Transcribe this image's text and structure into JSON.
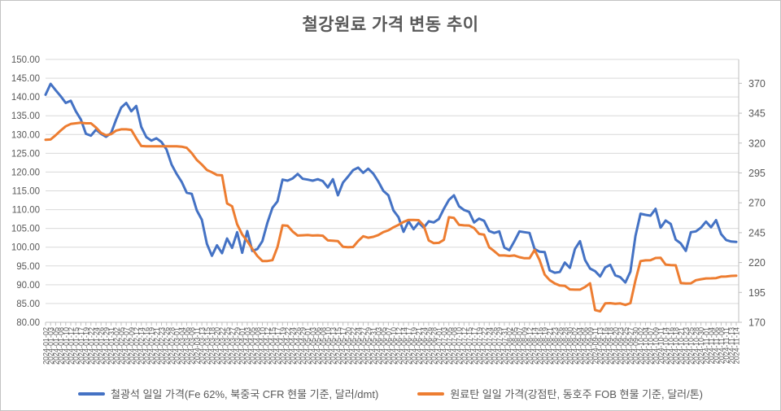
{
  "chart_data": {
    "type": "line",
    "title": "철강원료 가격 변동 추이",
    "legend_position": "bottom",
    "grid": true,
    "colors": {
      "grid": "#D9D9D9",
      "axis_line": "#BFBFBF",
      "axis_text": "#595959",
      "x_label_text": "#595959",
      "title": "#595959",
      "iron_ore": "#4472C4",
      "coking_coal": "#ED7D31",
      "background": "#FFFFFF",
      "border": "#C3C3C3"
    },
    "left_axis": {
      "min": 80,
      "max": 150,
      "step": 5,
      "tick_labels": [
        "150.00",
        "145.00",
        "140.00",
        "135.00",
        "130.00",
        "125.00",
        "120.00",
        "115.00",
        "110.00",
        "105.00",
        "100.00",
        "95.00",
        "90.00",
        "85.00",
        "80.00"
      ]
    },
    "right_axis": {
      "min": 170,
      "max": 390,
      "tick_values": [
        370,
        345,
        320,
        295,
        270,
        245,
        220,
        195,
        170
      ]
    },
    "x": [
      "2024-01-02",
      "2024-01-03",
      "2024-01-05",
      "2024-01-08",
      "2024-01-10",
      "2024-01-12",
      "2024-01-15",
      "2024-01-17",
      "2024-01-19",
      "2024-01-22",
      "2024-01-24",
      "2024-01-26",
      "2024-01-29",
      "2024-01-31",
      "2024-02-02",
      "2024-02-05",
      "2024-02-07",
      "2024-02-09",
      "2024-02-12",
      "2024-02-14",
      "2024-02-16",
      "2024-02-19",
      "2024-02-21",
      "2024-02-23",
      "2024-02-26",
      "2024-02-28",
      "2024-03-01",
      "2024-03-04",
      "2024-03-06",
      "2024-03-08",
      "2024-03-11",
      "2024-03-13",
      "2024-03-15",
      "2024-03-18",
      "2024-03-20",
      "2024-03-22",
      "2024-03-25",
      "2024-03-27",
      "2024-03-29",
      "2024-04-01",
      "2024-04-03",
      "2024-04-05",
      "2024-04-08",
      "2024-04-10",
      "2024-04-12",
      "2024-04-15",
      "2024-04-17",
      "2024-04-19",
      "2024-04-22",
      "2024-04-24",
      "2024-04-26",
      "2024-04-29",
      "2024-05-01",
      "2024-05-03",
      "2024-05-06",
      "2024-05-08",
      "2024-05-10",
      "2024-05-13",
      "2024-05-15",
      "2024-05-17",
      "2024-05-20",
      "2024-05-22",
      "2024-05-24",
      "2024-05-27",
      "2024-05-29",
      "2024-05-31",
      "2024-06-03",
      "2024-06-05",
      "2024-06-07",
      "2024-06-10",
      "2024-06-12",
      "2024-06-14",
      "2024-06-17",
      "2024-06-19",
      "2024-06-21",
      "2024-06-24",
      "2024-06-26",
      "2024-06-28",
      "2024-07-01",
      "2024-07-03",
      "2024-07-05",
      "2024-07-08",
      "2024-07-10",
      "2024-07-12",
      "2024-07-15",
      "2024-07-17",
      "2024-07-19",
      "2024-07-22",
      "2024-07-24",
      "2024-07-26",
      "2024-07-29",
      "2024-07-31",
      "2024-08-02",
      "2024-08-05",
      "2024-08-07",
      "2024-08-09",
      "2024-08-12",
      "2024-08-14",
      "2024-08-16",
      "2024-08-19",
      "2024-08-21",
      "2024-08-23",
      "2024-08-26",
      "2024-08-28",
      "2024-08-30",
      "2024-09-02",
      "2024-09-04",
      "2024-09-06",
      "2024-09-09",
      "2024-09-11",
      "2024-09-13",
      "2024-09-16",
      "2024-09-18",
      "2024-09-20",
      "2024-09-23",
      "2024-09-25",
      "2024-09-27",
      "2024-09-30",
      "2024-10-02",
      "2024-10-04",
      "2024-10-07",
      "2024-10-09",
      "2024-10-11",
      "2024-10-14",
      "2024-10-16",
      "2024-10-18",
      "2024-10-21",
      "2024-10-23",
      "2024-10-25",
      "2024-10-28",
      "2024-10-30",
      "2024-11-01",
      "2024-11-04",
      "2024-11-06",
      "2024-11-08",
      "2024-11-11",
      "2024-11-13",
      "2024-11-14"
    ],
    "series": [
      {
        "id": "iron-ore",
        "name": "철광석 일일 가격(Fe 62%, 북중국 CFR 현물 기준, 달러/dmt)",
        "axis": "left",
        "color": "#4472C4",
        "unit": "달러/dmt",
        "values": [
          140.6,
          143.5,
          141.8,
          140.2,
          138.4,
          139.0,
          136.2,
          134.0,
          130.2,
          129.7,
          131.3,
          130.2,
          129.4,
          130.4,
          134.0,
          137.2,
          138.4,
          136.2,
          137.6,
          132.0,
          129.3,
          128.4,
          129.0,
          128.0,
          126.0,
          122.0,
          119.5,
          117.4,
          114.5,
          114.2,
          109.8,
          107.3,
          100.9,
          97.7,
          100.5,
          98.4,
          102.3,
          99.8,
          104.0,
          98.5,
          104.3,
          99.0,
          99.5,
          101.6,
          106.5,
          110.5,
          112.2,
          118.0,
          117.7,
          118.3,
          119.5,
          118.2,
          118.0,
          117.7,
          118.1,
          117.6,
          115.9,
          118.1,
          113.8,
          117.2,
          118.8,
          120.5,
          121.2,
          119.8,
          120.9,
          119.6,
          117.5,
          115.0,
          113.8,
          109.8,
          108.0,
          104.1,
          106.9,
          104.8,
          106.5,
          105.2,
          106.9,
          106.6,
          107.5,
          110.2,
          112.6,
          113.8,
          110.9,
          109.9,
          109.4,
          106.6,
          107.6,
          107.0,
          104.3,
          103.8,
          104.2,
          99.9,
          99.2,
          101.6,
          104.2,
          104.0,
          103.8,
          99.5,
          98.8,
          98.7,
          93.8,
          93.2,
          93.4,
          95.9,
          94.5,
          99.5,
          101.6,
          96.6,
          94.3,
          93.6,
          92.2,
          94.6,
          95.3,
          92.5,
          92.0,
          90.6,
          93.5,
          103.0,
          108.9,
          108.6,
          108.4,
          110.2,
          105.2,
          107.1,
          106.2,
          102.0,
          101.0,
          99.0,
          104.0,
          104.2,
          105.2,
          106.8,
          105.3,
          107.2,
          103.5,
          101.9,
          101.5,
          101.4
        ]
      },
      {
        "id": "coking-coal",
        "name": "원료탄 일일 가격(강점탄, 동호주 FOB 현물 기준, 달러/톤)",
        "axis": "right",
        "color": "#ED7D31",
        "unit": "달러/톤",
        "values": [
          322.8,
          323.0,
          326.5,
          330.5,
          334.0,
          336.0,
          336.5,
          337.0,
          336.5,
          336.5,
          333.0,
          328.5,
          326.5,
          327.5,
          330.5,
          331.5,
          331.5,
          331.0,
          324.0,
          317.5,
          317.3,
          317.3,
          317.3,
          317.3,
          317.3,
          317.3,
          317.3,
          317.0,
          316.0,
          311.6,
          305.9,
          302.0,
          297.5,
          295.5,
          293.3,
          293.0,
          269.5,
          267.1,
          252.0,
          243.5,
          238.0,
          231.5,
          225.5,
          221.3,
          221.3,
          222.0,
          233.0,
          251.1,
          250.8,
          246.0,
          242.6,
          242.8,
          243.0,
          242.6,
          242.8,
          242.5,
          238.5,
          238.3,
          238.0,
          233.2,
          232.8,
          233.0,
          238.0,
          242.0,
          240.8,
          241.5,
          243.0,
          245.5,
          247.0,
          249.5,
          251.5,
          254.0,
          255.7,
          255.7,
          255.5,
          251.0,
          238.5,
          236.2,
          236.5,
          239.0,
          257.9,
          257.4,
          251.5,
          251.1,
          251.0,
          248.8,
          244.0,
          243.3,
          232.8,
          229.5,
          225.9,
          225.9,
          225.5,
          225.9,
          224.5,
          223.6,
          223.6,
          230.5,
          222.0,
          209.9,
          205.3,
          202.5,
          200.8,
          200.5,
          197.5,
          197.3,
          197.3,
          199.5,
          202.6,
          180.2,
          179.1,
          185.8,
          186.0,
          185.5,
          185.8,
          184.5,
          186.0,
          205.0,
          221.2,
          221.8,
          222.0,
          223.8,
          224.0,
          218.3,
          217.9,
          217.7,
          202.9,
          202.5,
          202.6,
          205.2,
          206.0,
          206.7,
          206.8,
          207.0,
          208.2,
          208.3,
          208.8,
          209.0
        ]
      }
    ]
  }
}
